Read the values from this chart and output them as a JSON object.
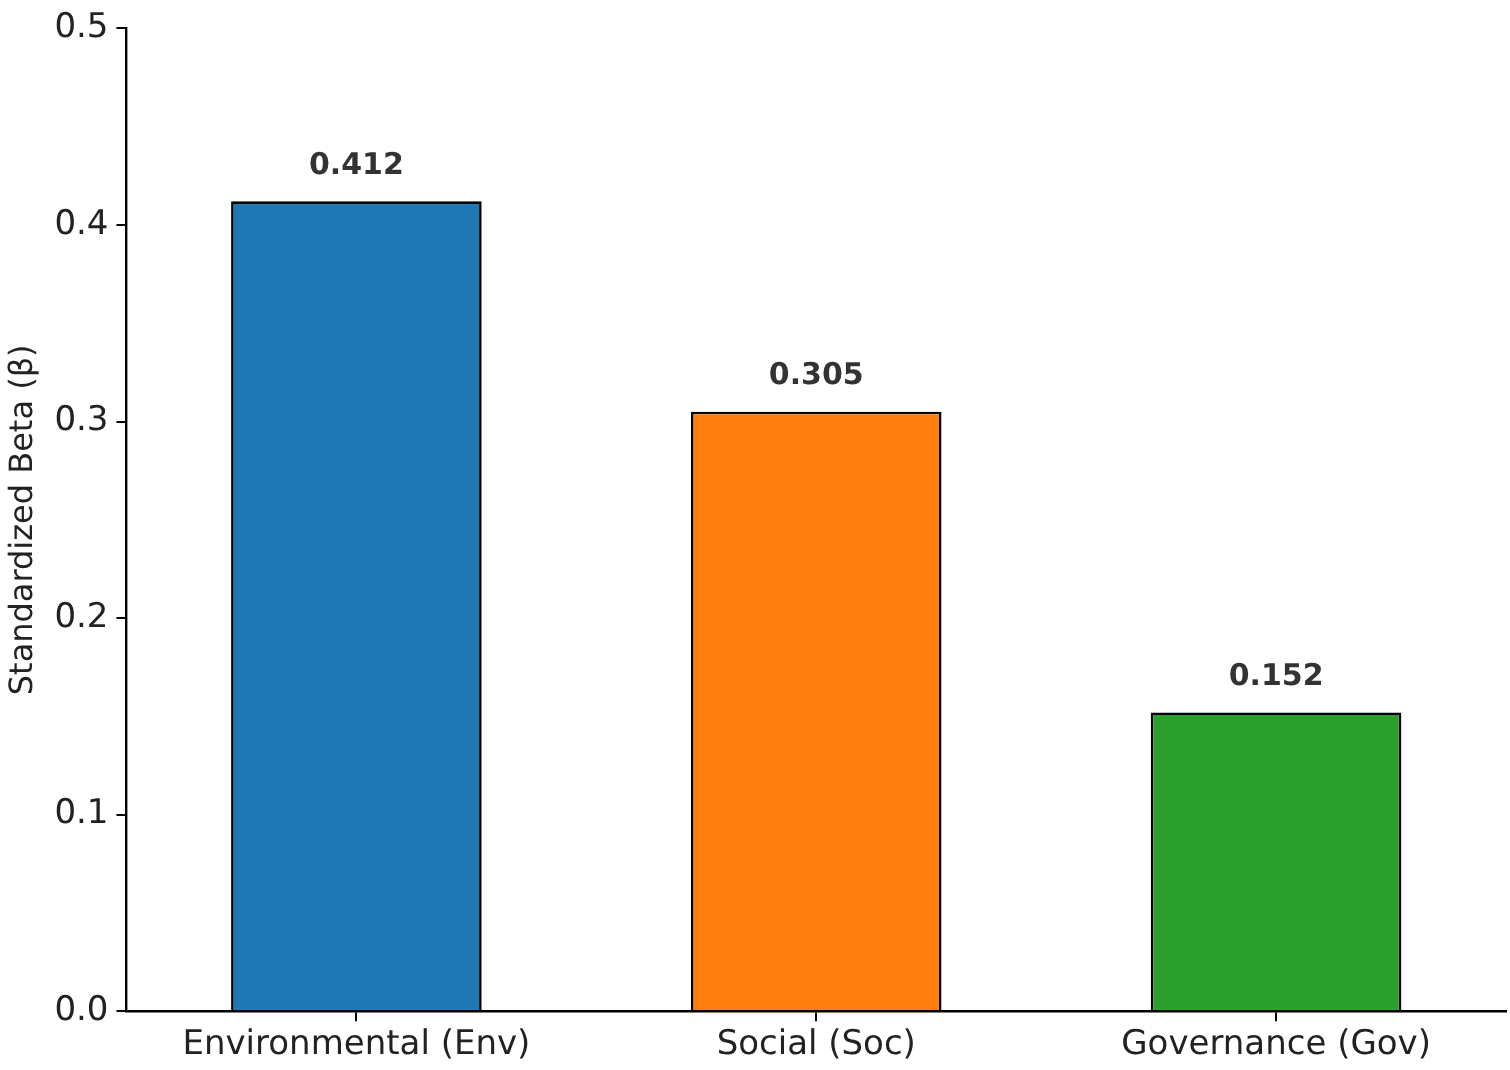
{
  "chart_data": {
    "type": "bar",
    "ylabel": "Standardized Beta (β)",
    "categories": [
      "Environmental (Env)",
      "Social (Soc)",
      "Governance (Gov)"
    ],
    "values": [
      0.412,
      0.305,
      0.152
    ],
    "colors": [
      "#1f77b4",
      "#ff7f0e",
      "#2ca02c"
    ],
    "ylim": [
      0,
      0.5
    ],
    "yticks": [
      {
        "value": 0,
        "label": "0.0"
      },
      0.1,
      0.2,
      0.3,
      0.4,
      0.5
    ],
    "data_labels": true,
    "grid": false,
    "legend": false
  }
}
